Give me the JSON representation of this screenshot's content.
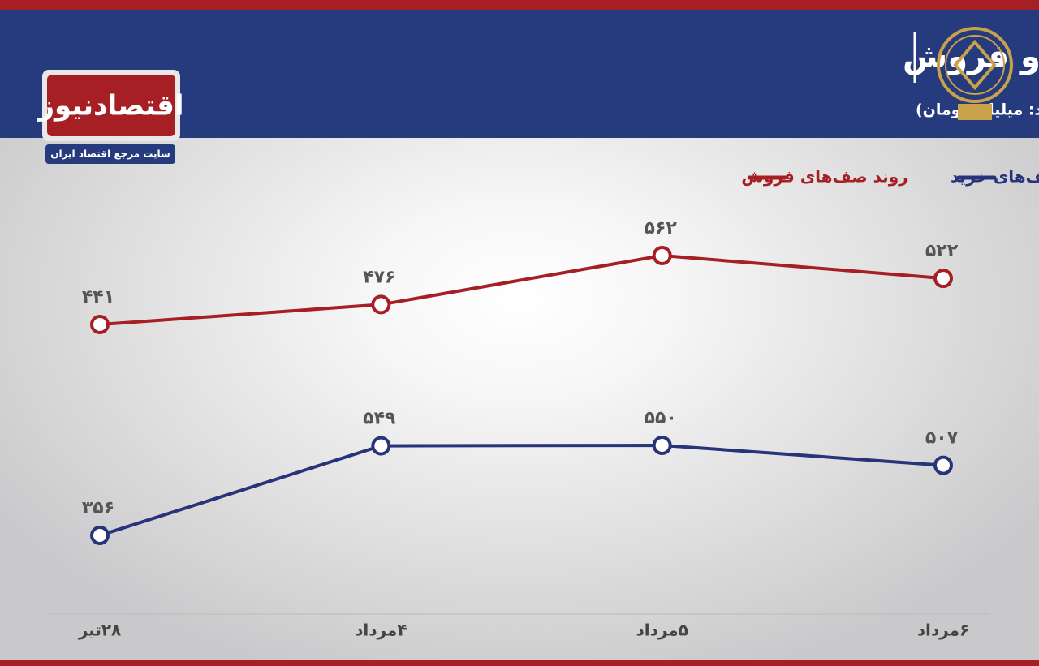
{
  "branding": {
    "name": "اقتصادنیوز",
    "tagline": "سایت مرجع اقتصاد ایران"
  },
  "chart_data": {
    "type": "line",
    "title": "روند هفته ارزش صف‌های خرید و فروش",
    "subtitle": "(واحد: میلیارد تومان)",
    "categories": [
      "۲۸تیر",
      "۴مرداد",
      "۵مرداد",
      "۶مرداد"
    ],
    "series": [
      {
        "name": "روند صف‌های خرید",
        "color": "#27347a",
        "values": [
          356,
          549,
          550,
          507
        ],
        "value_labels": [
          "۳۵۶",
          "۵۴۹",
          "۵۵۰",
          "۵۰۷"
        ]
      },
      {
        "name": "روند صف‌های فروش",
        "color": "#a61f24",
        "values": [
          441,
          476,
          562,
          522
        ],
        "value_labels": [
          "۴۴۱",
          "۴۷۶",
          "۵۶۲",
          "۵۲۲"
        ]
      }
    ]
  }
}
